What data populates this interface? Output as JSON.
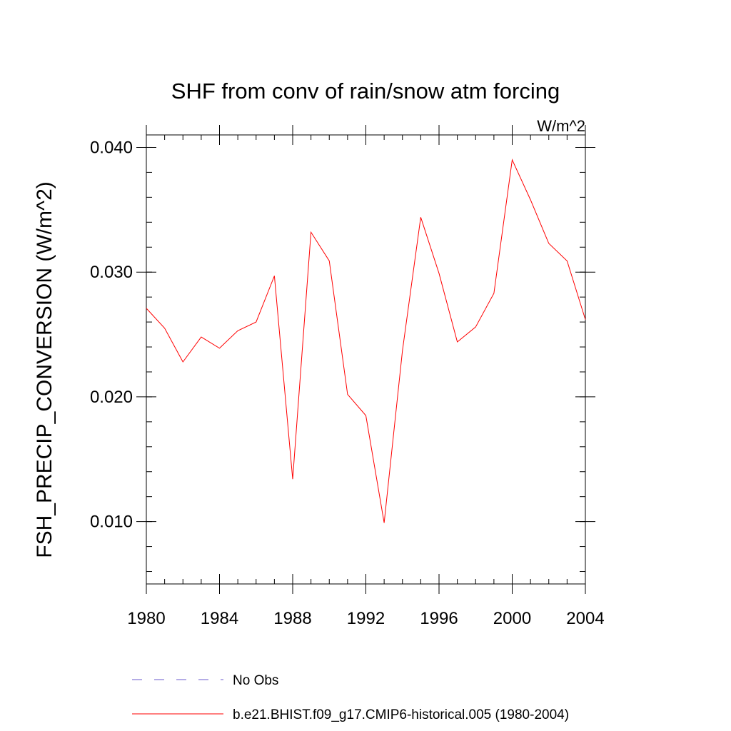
{
  "chart_data": {
    "type": "line",
    "title": "SHF from conv of rain/snow atm forcing",
    "units": "W/m^2",
    "xlabel": "",
    "ylabel": "FSH_PRECIP_CONVERSION  (W/m^2)",
    "xlim": [
      1980,
      2004
    ],
    "ylim": [
      0.005,
      0.041
    ],
    "x_major_ticks": [
      1980,
      1984,
      1988,
      1992,
      1996,
      2000,
      2004
    ],
    "x_tick_labels": [
      "1980",
      "1984",
      "1988",
      "1992",
      "1996",
      "2000",
      "2004"
    ],
    "y_major_ticks": [
      0.01,
      0.02,
      0.03,
      0.04
    ],
    "y_tick_labels": [
      "0.010",
      "0.020",
      "0.030",
      "0.040"
    ],
    "y_minor_step": 0.002,
    "x_minor_step": 1,
    "series": [
      {
        "name": "b.e21.BHIST.f09_g17.CMIP6-historical.005 (1980-2004)",
        "color": "#ff0000",
        "x": [
          1980,
          1981,
          1982,
          1983,
          1984,
          1985,
          1986,
          1987,
          1988,
          1989,
          1990,
          1991,
          1992,
          1993,
          1994,
          1995,
          1996,
          1997,
          1998,
          1999,
          2000,
          2001,
          2002,
          2003,
          2004
        ],
        "values": [
          0.0271,
          0.0255,
          0.0228,
          0.0248,
          0.0239,
          0.0253,
          0.026,
          0.0297,
          0.0134,
          0.0332,
          0.0309,
          0.0202,
          0.0185,
          0.0099,
          0.0237,
          0.0344,
          0.0299,
          0.0244,
          0.0256,
          0.0283,
          0.039,
          0.0358,
          0.0323,
          0.0309,
          0.0262
        ]
      }
    ],
    "legend": [
      {
        "label": "No Obs",
        "color": "#6a5acd",
        "style": "dashed"
      },
      {
        "label": "b.e21.BHIST.f09_g17.CMIP6-historical.005 (1980-2004)",
        "color": "#ff0000",
        "style": "solid"
      }
    ]
  }
}
